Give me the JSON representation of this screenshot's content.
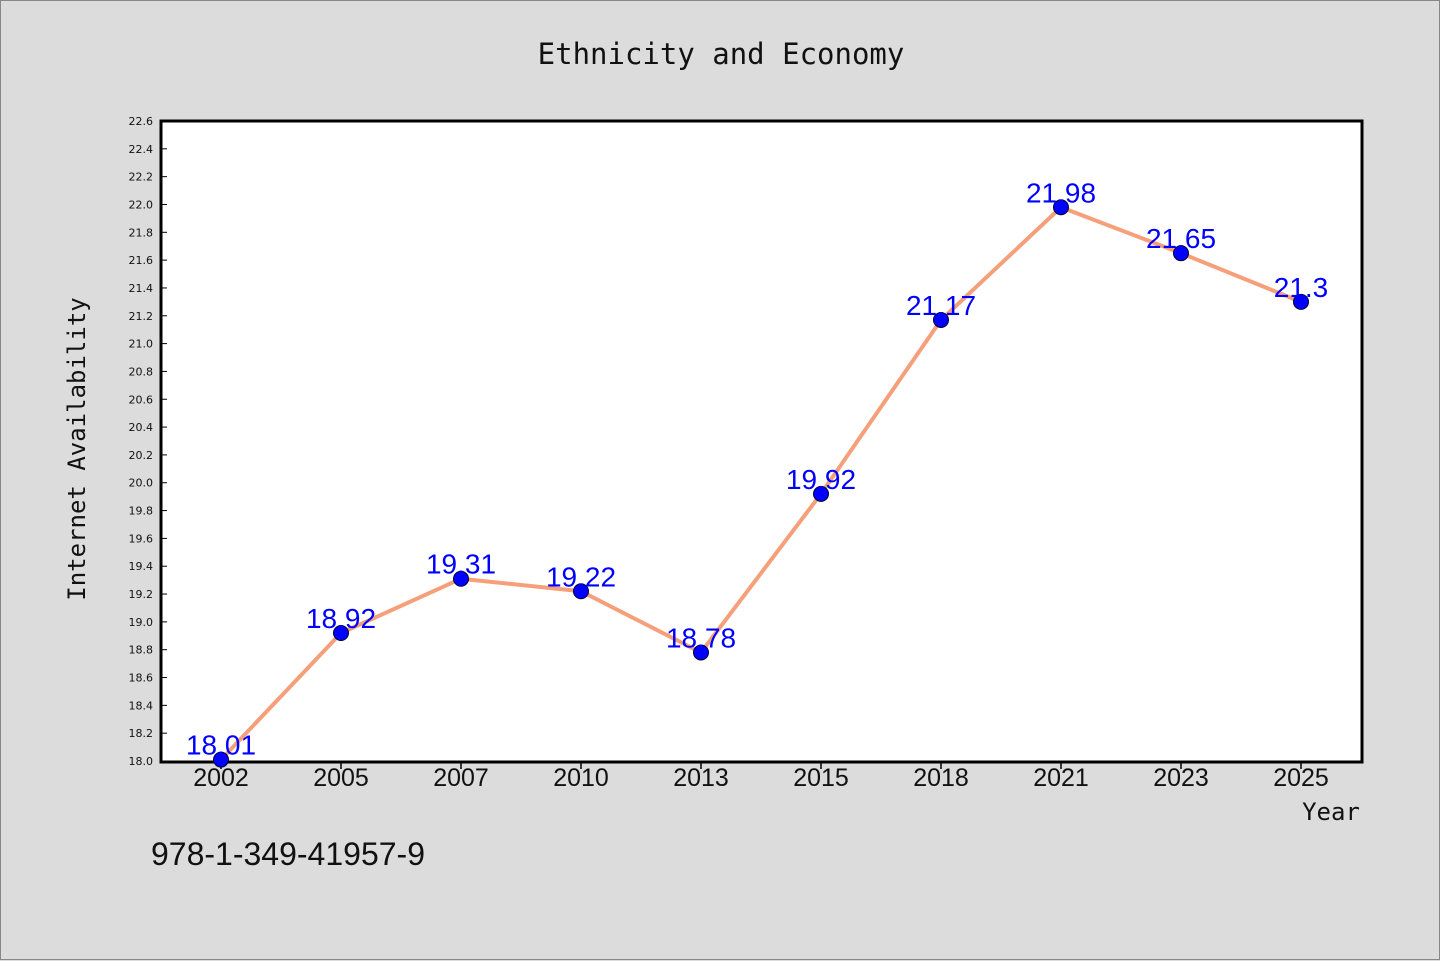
{
  "chart_data": {
    "type": "line",
    "title": "Ethnicity and Economy",
    "xlabel": "Year",
    "ylabel": "Internet Availability",
    "categories": [
      "2002",
      "2005",
      "2007",
      "2010",
      "2013",
      "2015",
      "2018",
      "2021",
      "2023",
      "2025"
    ],
    "series": [
      {
        "values": [
          18.01,
          18.92,
          19.31,
          19.22,
          18.78,
          19.92,
          21.17,
          21.98,
          21.65,
          21.3
        ]
      }
    ],
    "ylim": [
      18.0,
      22.6
    ],
    "yticks": [
      "18.0",
      "18.2",
      "18.4",
      "18.6",
      "18.8",
      "19.0",
      "19.2",
      "19.4",
      "19.6",
      "19.8",
      "20.0",
      "20.2",
      "20.4",
      "20.6",
      "20.8",
      "21.0",
      "21.2",
      "21.4",
      "21.6",
      "21.8",
      "22.0",
      "22.2",
      "22.4",
      "22.6"
    ],
    "data_labels": [
      "18.01",
      "18.92",
      "19.31",
      "19.22",
      "18.78",
      "19.92",
      "21.17",
      "21.98",
      "21.65",
      "21.3"
    ],
    "grid": false,
    "legend": "none",
    "colors": {
      "line": "#f5a07a",
      "marker": "#0000ff",
      "label": "#0000ff",
      "background": "#dcdcdc",
      "plot_bg": "#ffffff"
    }
  },
  "footer_text": "978-1-349-41957-9"
}
